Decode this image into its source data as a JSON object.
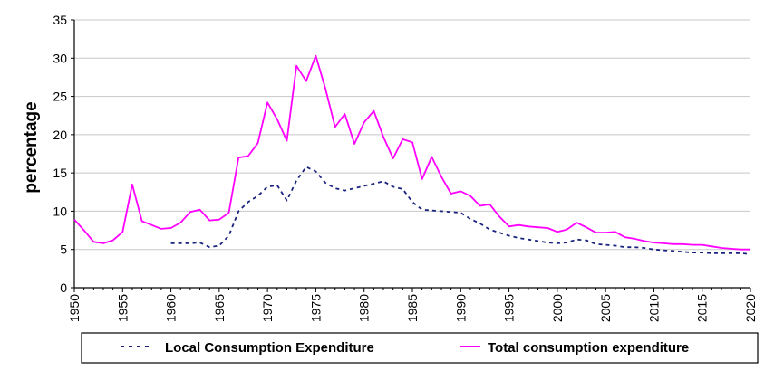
{
  "chart_data": {
    "type": "line",
    "title": "",
    "xlabel": "",
    "ylabel": "percentage",
    "xlim": [
      1950,
      2020
    ],
    "ylim": [
      0,
      35
    ],
    "x_ticks": [
      "1950",
      "1955",
      "1960",
      "1965",
      "1970",
      "1975",
      "1980",
      "1985",
      "1990",
      "1995",
      "2000",
      "2005",
      "2010",
      "2015",
      "2020"
    ],
    "y_ticks": [
      "0",
      "5",
      "10",
      "15",
      "20",
      "25",
      "30",
      "35"
    ],
    "grid": "horizontal",
    "legend_position": "bottom",
    "series": [
      {
        "name": "Local Consumption Expenditure",
        "color": "#1a237e",
        "style": "dashed",
        "x": [
          1960,
          1961,
          1962,
          1963,
          1964,
          1965,
          1966,
          1967,
          1968,
          1969,
          1970,
          1971,
          1972,
          1973,
          1974,
          1975,
          1976,
          1977,
          1978,
          1979,
          1980,
          1981,
          1982,
          1983,
          1984,
          1985,
          1986,
          1987,
          1988,
          1989,
          1990,
          1991,
          1992,
          1993,
          1994,
          1995,
          1996,
          1997,
          1998,
          1999,
          2000,
          2001,
          2002,
          2003,
          2004,
          2005,
          2006,
          2007,
          2008,
          2009,
          2010,
          2011,
          2012,
          2013,
          2014,
          2015,
          2016,
          2017,
          2018,
          2019,
          2020
        ],
        "values": [
          5.8,
          5.8,
          5.8,
          5.9,
          5.3,
          5.5,
          6.8,
          10.0,
          11.2,
          12.0,
          13.2,
          13.4,
          11.4,
          14.0,
          15.8,
          15.2,
          13.7,
          13.0,
          12.7,
          13.0,
          13.3,
          13.6,
          13.9,
          13.2,
          12.9,
          11.2,
          10.2,
          10.1,
          10.0,
          9.9,
          9.8,
          9.0,
          8.4,
          7.6,
          7.2,
          6.8,
          6.5,
          6.3,
          6.1,
          5.9,
          5.8,
          5.9,
          6.3,
          6.2,
          5.7,
          5.6,
          5.5,
          5.3,
          5.3,
          5.2,
          5.0,
          4.9,
          4.8,
          4.7,
          4.6,
          4.6,
          4.5,
          4.5,
          4.5,
          4.5,
          4.4
        ]
      },
      {
        "name": "Total consumption expenditure",
        "color": "#ff00ff",
        "style": "solid",
        "x": [
          1950,
          1951,
          1952,
          1953,
          1954,
          1955,
          1956,
          1957,
          1958,
          1959,
          1960,
          1961,
          1962,
          1963,
          1964,
          1965,
          1966,
          1967,
          1968,
          1969,
          1970,
          1971,
          1972,
          1973,
          1974,
          1975,
          1976,
          1977,
          1978,
          1979,
          1980,
          1981,
          1982,
          1983,
          1984,
          1985,
          1986,
          1987,
          1988,
          1989,
          1990,
          1991,
          1992,
          1993,
          1994,
          1995,
          1996,
          1997,
          1998,
          1999,
          2000,
          2001,
          2002,
          2003,
          2004,
          2005,
          2006,
          2007,
          2008,
          2009,
          2010,
          2011,
          2012,
          2013,
          2014,
          2015,
          2016,
          2017,
          2018,
          2019,
          2020
        ],
        "values": [
          8.9,
          7.5,
          6.0,
          5.8,
          6.2,
          7.3,
          13.5,
          8.7,
          8.2,
          7.7,
          7.8,
          8.5,
          9.9,
          10.2,
          8.8,
          8.9,
          9.8,
          17.0,
          17.2,
          18.9,
          24.2,
          22.0,
          19.2,
          29.0,
          27.0,
          30.3,
          26.0,
          21.0,
          22.7,
          18.8,
          21.6,
          23.1,
          19.7,
          16.9,
          19.4,
          19.0,
          14.2,
          17.1,
          14.5,
          12.3,
          12.6,
          12.0,
          10.7,
          10.9,
          9.3,
          8.0,
          8.2,
          8.0,
          7.9,
          7.8,
          7.3,
          7.6,
          8.5,
          7.9,
          7.2,
          7.2,
          7.3,
          6.6,
          6.4,
          6.1,
          5.9,
          5.8,
          5.7,
          5.7,
          5.6,
          5.6,
          5.4,
          5.2,
          5.1,
          5.0,
          5.0
        ]
      }
    ]
  }
}
